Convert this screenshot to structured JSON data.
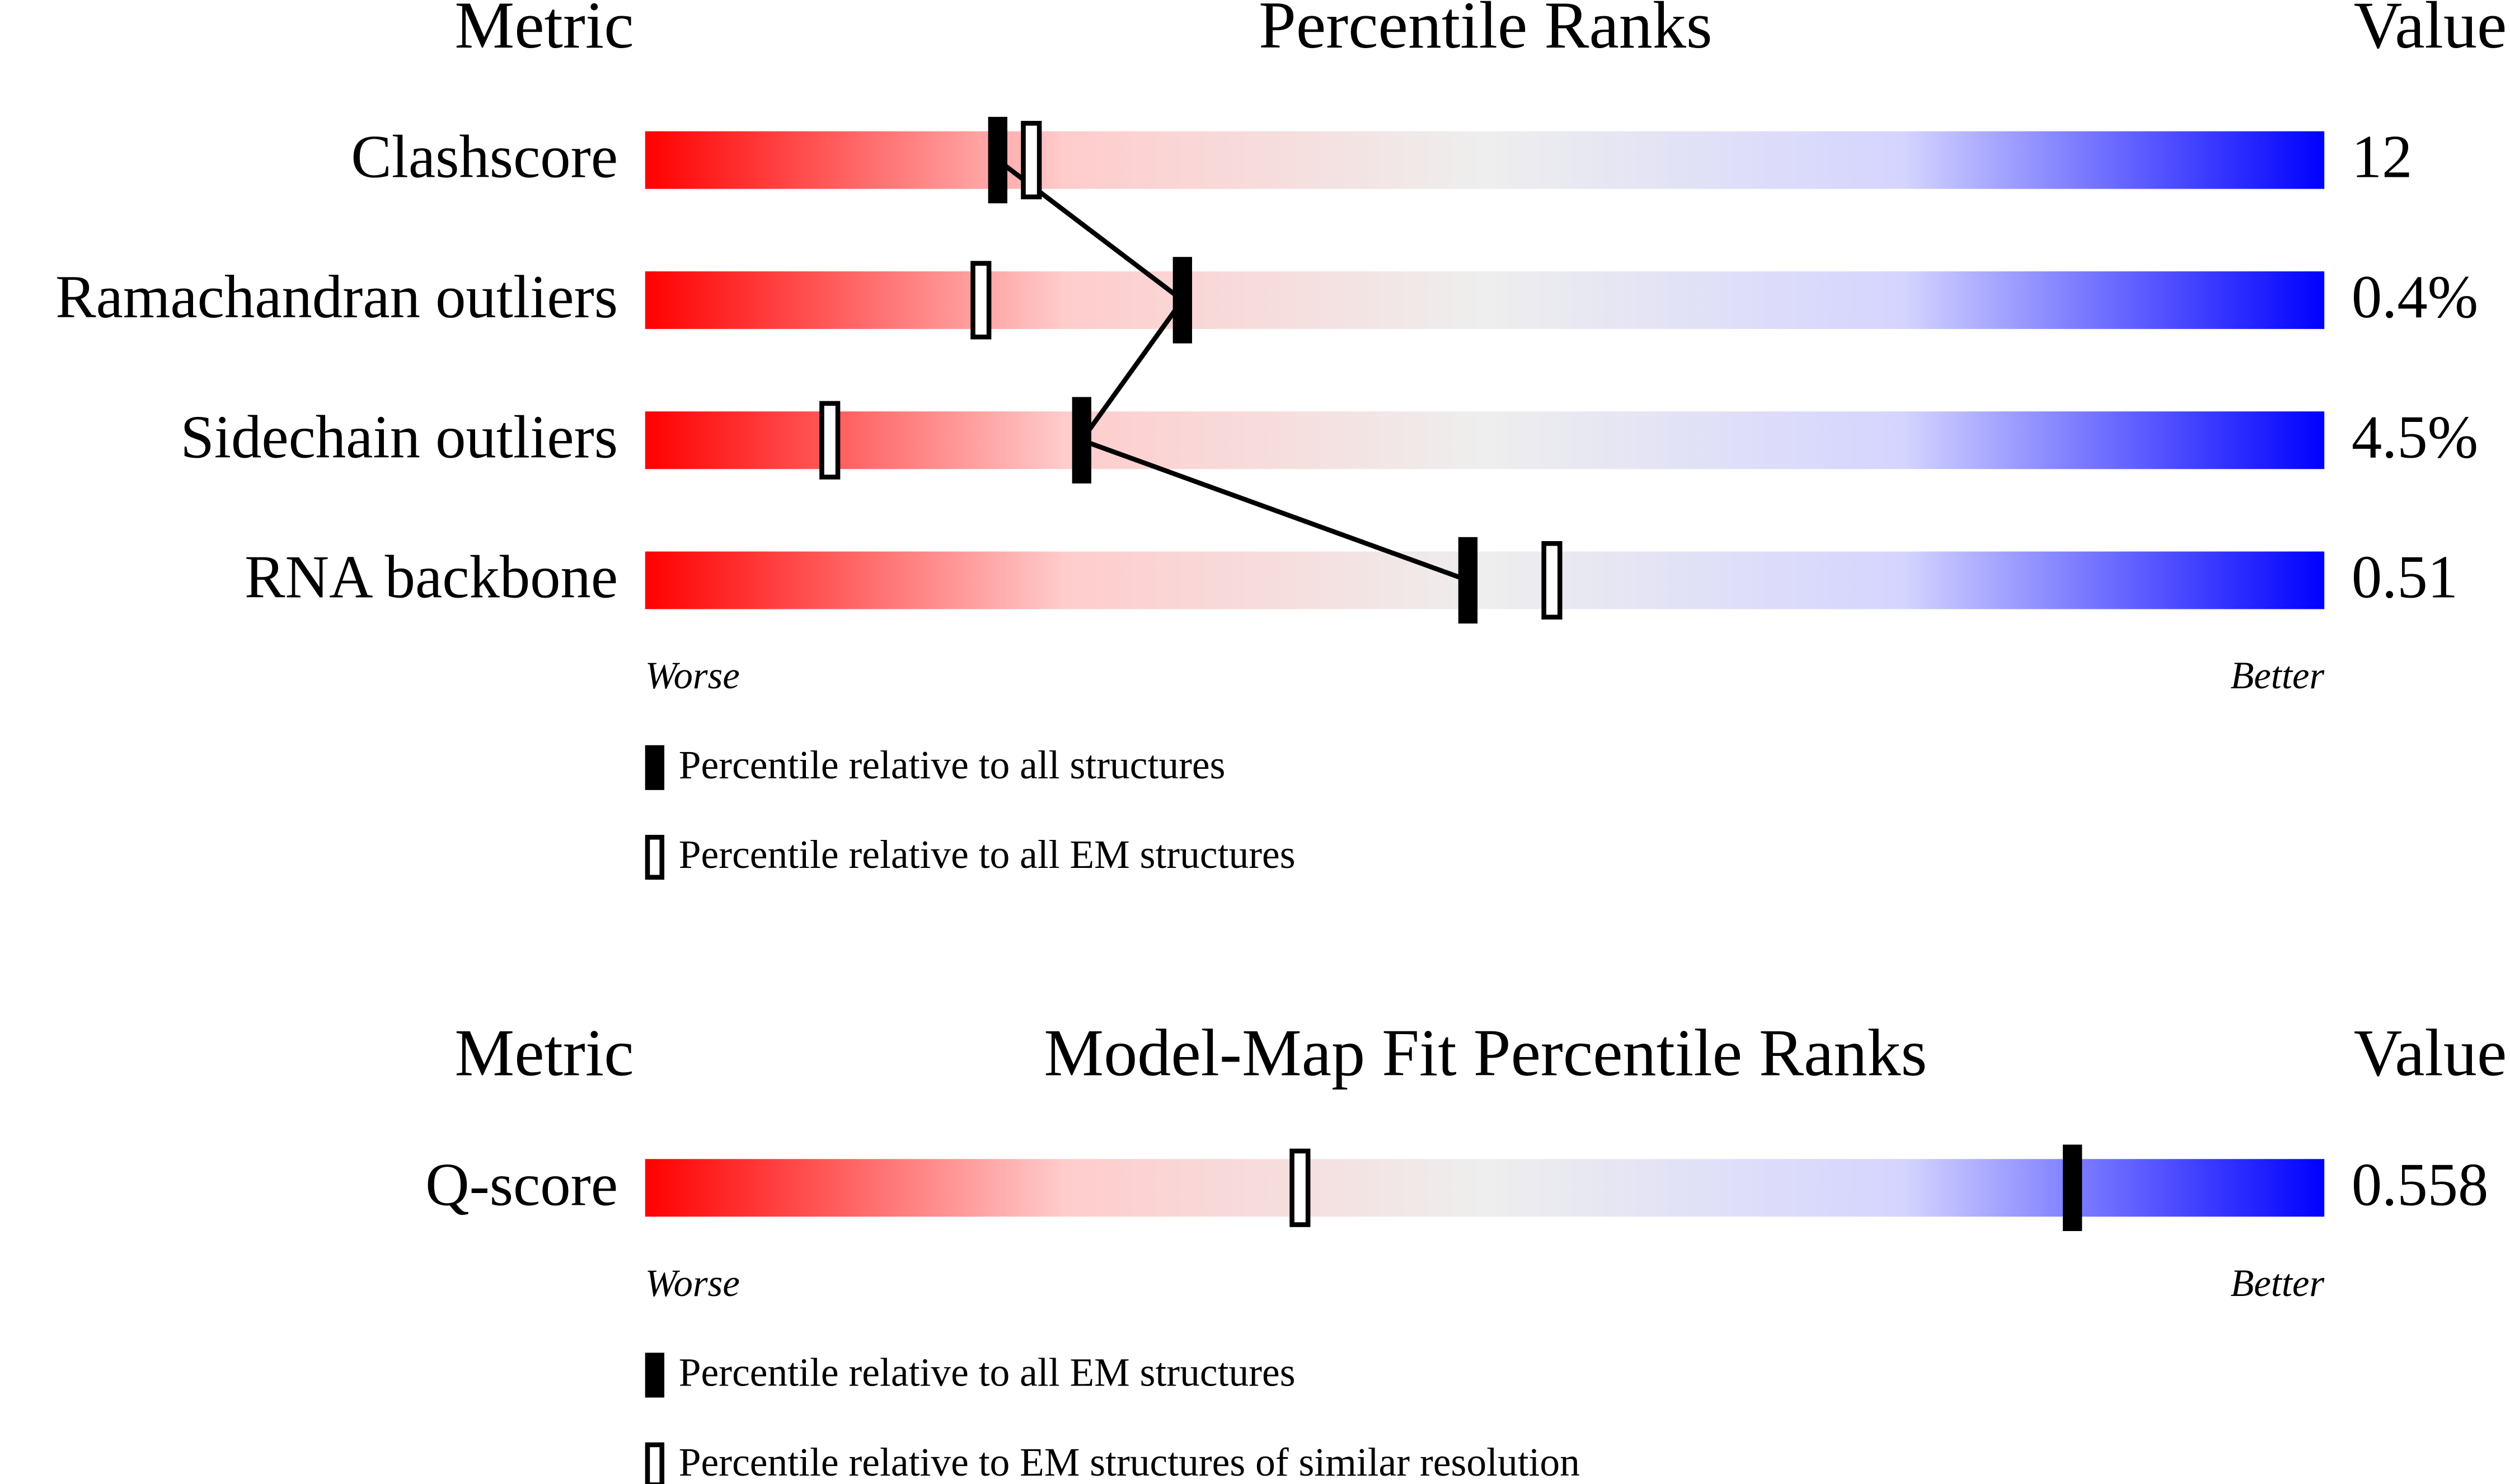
{
  "chart_data": [
    {
      "type": "percentile-ranks",
      "headers": {
        "metric": "Metric",
        "title": "Percentile Ranks",
        "value": "Value"
      },
      "categories": [
        "Clashscore",
        "Ramachandran outliers",
        "Sidechain outliers",
        "RNA backbone"
      ],
      "metric_values": [
        "12",
        "0.4%",
        "4.5%",
        "0.51"
      ],
      "series": [
        {
          "name": "Percentile relative to all structures",
          "style": "filled",
          "color": "#000000",
          "connect": true,
          "values": [
            21,
            32,
            26,
            49
          ]
        },
        {
          "name": "Percentile relative to all EM structures",
          "style": "open",
          "color": "#000000",
          "connect": false,
          "values": [
            23,
            20,
            11,
            54
          ]
        }
      ],
      "xlim": [
        0,
        100
      ],
      "low_label": "Worse",
      "high_label": "Better",
      "gradient": [
        "#ff0000",
        "#ffcccc",
        "#eeeeee",
        "#d4d4ff",
        "#0000ff"
      ]
    },
    {
      "type": "percentile-ranks",
      "headers": {
        "metric": "Metric",
        "title": "Model-Map Fit Percentile Ranks",
        "value": "Value"
      },
      "categories": [
        "Q-score"
      ],
      "metric_values": [
        "0.558"
      ],
      "series": [
        {
          "name": "Percentile relative to all EM structures",
          "style": "filled",
          "color": "#000000",
          "connect": true,
          "values": [
            85
          ]
        },
        {
          "name": "Percentile relative to EM structures of similar resolution",
          "style": "open",
          "color": "#000000",
          "connect": false,
          "values": [
            39
          ]
        }
      ],
      "xlim": [
        0,
        100
      ],
      "low_label": "Worse",
      "high_label": "Better",
      "gradient": [
        "#ff0000",
        "#ffcccc",
        "#eeeeee",
        "#d4d4ff",
        "#0000ff"
      ]
    }
  ]
}
